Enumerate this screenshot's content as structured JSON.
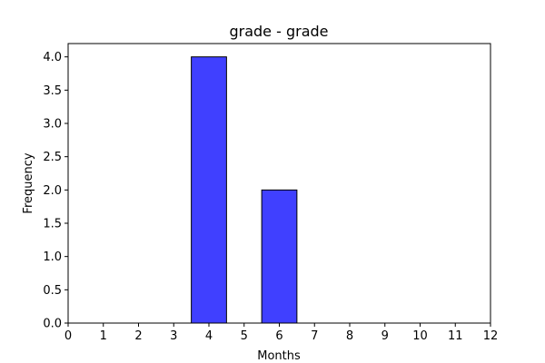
{
  "chart_data": {
    "type": "bar",
    "title": "grade - grade",
    "xlabel": "Months",
    "ylabel": "Frequency",
    "xlim": [
      0,
      12
    ],
    "ylim": [
      0,
      4.2
    ],
    "x_ticks": [
      "0",
      "1",
      "2",
      "3",
      "4",
      "5",
      "6",
      "7",
      "8",
      "9",
      "10",
      "11",
      "12"
    ],
    "y_ticks": [
      "0.0",
      "0.5",
      "1.0",
      "1.5",
      "2.0",
      "2.5",
      "3.0",
      "3.5",
      "4.0"
    ],
    "bars": [
      {
        "x_start": 3.5,
        "x_end": 4.5,
        "value": 4
      },
      {
        "x_start": 5.5,
        "x_end": 6.5,
        "value": 2
      }
    ],
    "bar_color": "#4040ff",
    "bar_edge_color": "#000000",
    "grid": false
  }
}
